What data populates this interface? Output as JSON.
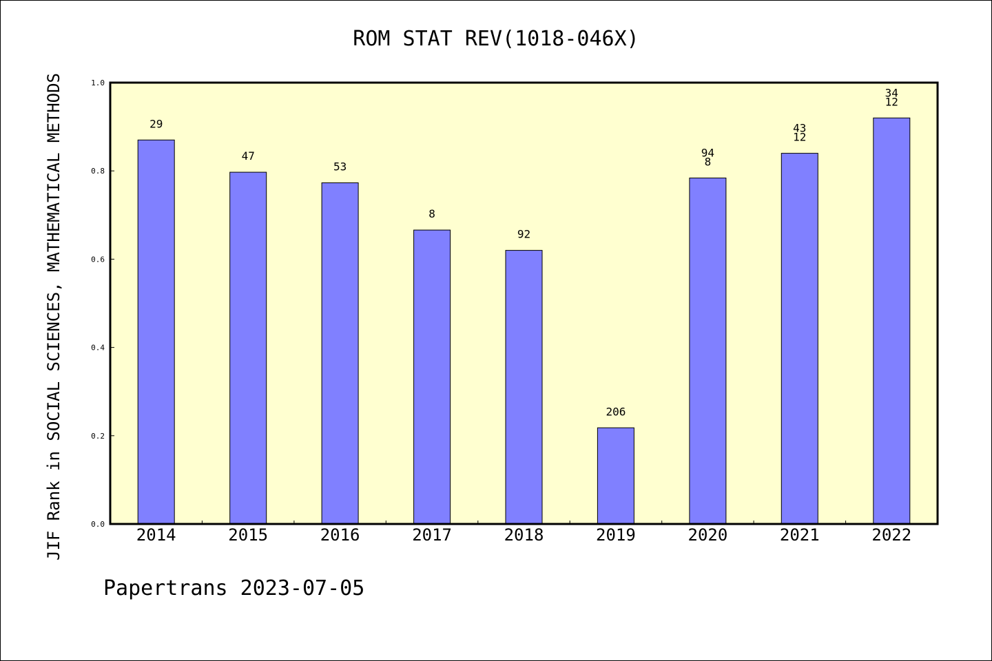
{
  "chart_data": {
    "type": "bar",
    "title": "ROM STAT REV(1018-046X)",
    "ylabel": "JIF Rank in SOCIAL SCIENCES, MATHEMATICAL METHODS",
    "xlabel": "",
    "categories": [
      "2014",
      "2015",
      "2016",
      "2017",
      "2018",
      "2019",
      "2020",
      "2021",
      "2022"
    ],
    "values": [
      0.87,
      0.797,
      0.773,
      0.666,
      0.62,
      0.218,
      0.784,
      0.84,
      0.92
    ],
    "bar_labels": [
      [
        "29"
      ],
      [
        "47"
      ],
      [
        "53"
      ],
      [
        "8"
      ],
      [
        "92"
      ],
      [
        "206"
      ],
      [
        "94",
        "8"
      ],
      [
        "43",
        "12"
      ],
      [
        "34",
        "12"
      ]
    ],
    "ylim": [
      0,
      1.0
    ],
    "yticks": [
      "0.0",
      "0.2",
      "0.4",
      "0.6",
      "0.8",
      "1.0"
    ],
    "grid": false,
    "colors": {
      "bar": "#8080ff",
      "plot_bg": "#ffffd0",
      "border": "#000000"
    }
  },
  "footer": "Papertrans 2023-07-05"
}
